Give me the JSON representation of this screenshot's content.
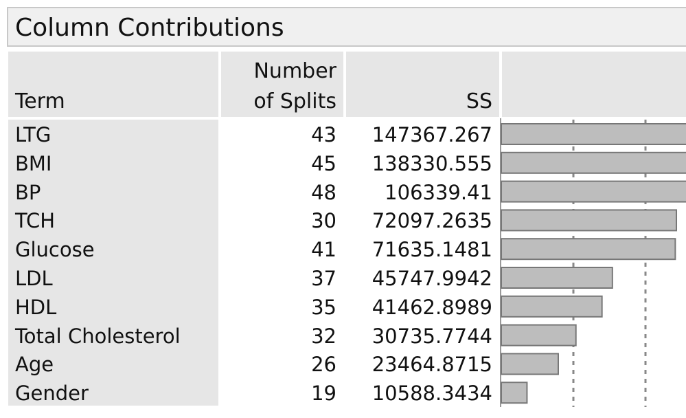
{
  "title": "Column Contributions",
  "table": {
    "columns": [
      "Term",
      "Number\nof Splits",
      "SS"
    ],
    "rows": [
      [
        "LTG",
        43,
        147367.267
      ],
      [
        "BMI",
        45,
        138330.555
      ],
      [
        "BP",
        48,
        106339.41
      ],
      [
        "TCH",
        30,
        72097.2635
      ],
      [
        "Glucose",
        41,
        71635.1481
      ],
      [
        "LDL",
        37,
        45747.9942
      ],
      [
        "HDL",
        35,
        41462.8989
      ],
      [
        "Total Cholesterol",
        32,
        30735.7744
      ],
      [
        "Age",
        26,
        23464.8715
      ],
      [
        "Gender",
        19,
        10588.3434
      ]
    ],
    "bar_color": "#bdbdbd"
  }
}
